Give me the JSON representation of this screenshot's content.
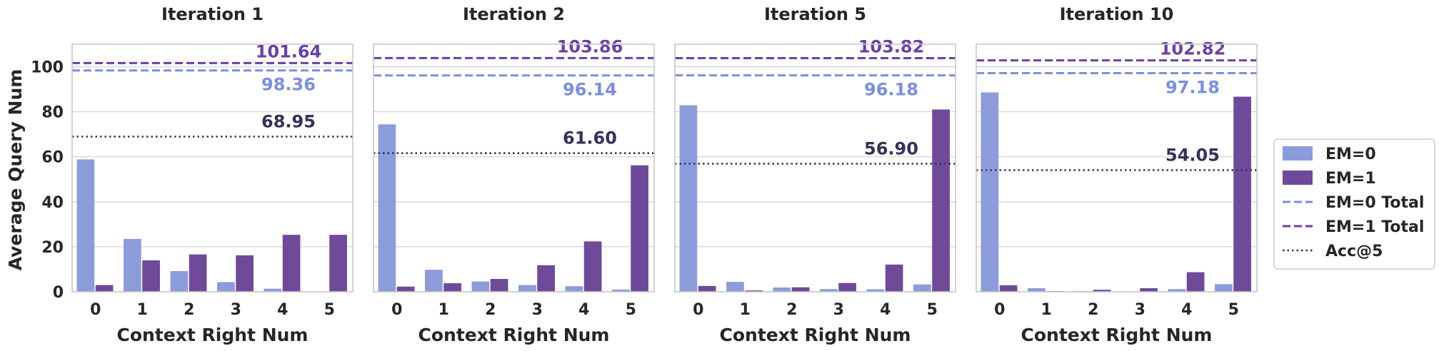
{
  "figure": {
    "shared_ylabel": "Average Query Num",
    "legend": [
      {
        "key": "em0",
        "label": "EM=0",
        "kind": "bar"
      },
      {
        "key": "em1",
        "label": "EM=1",
        "kind": "bar"
      },
      {
        "key": "em0_total",
        "label": "EM=0 Total",
        "kind": "dashed"
      },
      {
        "key": "em1_total",
        "label": "EM=1 Total",
        "kind": "dashed"
      },
      {
        "key": "acc5",
        "label": "Acc@5",
        "kind": "dotted"
      }
    ]
  },
  "colors": {
    "em0": "#8c9cdb",
    "em1": "#6e4a99",
    "em0_total": "#7b8fe0",
    "em1_total": "#6b3fa6",
    "acc5": "#34325a",
    "grid": "#d4d4d4",
    "axis": "#c8c8c8",
    "text": "#262626"
  },
  "chart_data": [
    {
      "type": "bar",
      "title": "Iteration 1",
      "xlabel": "Context Right Num",
      "ylabel": "Average Query Num",
      "categories": [
        "0",
        "1",
        "2",
        "3",
        "4",
        "5"
      ],
      "ylim": [
        0,
        110
      ],
      "yticks": [
        "0",
        "20",
        "40",
        "60",
        "80",
        "100"
      ],
      "series": [
        {
          "name": "EM=0",
          "values": [
            58.8,
            23.5,
            9.2,
            4.3,
            1.4,
            0.0
          ]
        },
        {
          "name": "EM=1",
          "values": [
            3.0,
            14.0,
            16.6,
            16.2,
            25.3,
            25.3
          ]
        }
      ],
      "reference_lines": {
        "em1_total": {
          "value": 101.64,
          "label": "101.64"
        },
        "em0_total": {
          "value": 98.36,
          "label": "98.36"
        },
        "acc5": {
          "value": 68.95,
          "label": "68.95"
        }
      }
    },
    {
      "type": "bar",
      "title": "Iteration 2",
      "xlabel": "Context Right Num",
      "ylabel": "",
      "categories": [
        "0",
        "1",
        "2",
        "3",
        "4",
        "5"
      ],
      "ylim": [
        0,
        110
      ],
      "yticks": [],
      "series": [
        {
          "name": "EM=0",
          "values": [
            74.4,
            9.8,
            4.6,
            3.0,
            2.5,
            1.0
          ]
        },
        {
          "name": "EM=1",
          "values": [
            2.3,
            3.8,
            5.7,
            11.8,
            22.4,
            56.2
          ]
        }
      ],
      "reference_lines": {
        "em1_total": {
          "value": 103.86,
          "label": "103.86"
        },
        "em0_total": {
          "value": 96.14,
          "label": "96.14"
        },
        "acc5": {
          "value": 61.6,
          "label": "61.60"
        }
      }
    },
    {
      "type": "bar",
      "title": "Iteration 5",
      "xlabel": "Context Right Num",
      "ylabel": "",
      "categories": [
        "0",
        "1",
        "2",
        "3",
        "4",
        "5"
      ],
      "ylim": [
        0,
        110
      ],
      "yticks": [],
      "series": [
        {
          "name": "EM=0",
          "values": [
            82.9,
            4.4,
            1.9,
            1.2,
            1.1,
            3.3
          ]
        },
        {
          "name": "EM=1",
          "values": [
            2.6,
            0.6,
            2.0,
            3.9,
            12.1,
            81.0
          ]
        }
      ],
      "reference_lines": {
        "em1_total": {
          "value": 103.82,
          "label": "103.82"
        },
        "em0_total": {
          "value": 96.18,
          "label": "96.18"
        },
        "acc5": {
          "value": 56.9,
          "label": "56.90"
        }
      }
    },
    {
      "type": "bar",
      "title": "Iteration 10",
      "xlabel": "Context Right Num",
      "ylabel": "",
      "categories": [
        "0",
        "1",
        "2",
        "3",
        "4",
        "5"
      ],
      "ylim": [
        0,
        110
      ],
      "yticks": [],
      "series": [
        {
          "name": "EM=0",
          "values": [
            88.6,
            1.6,
            0.3,
            0.2,
            1.2,
            3.4
          ]
        },
        {
          "name": "EM=1",
          "values": [
            2.9,
            0.3,
            0.9,
            1.6,
            8.7,
            86.7
          ]
        }
      ],
      "reference_lines": {
        "em1_total": {
          "value": 102.82,
          "label": "102.82"
        },
        "em0_total": {
          "value": 97.18,
          "label": "97.18"
        },
        "acc5": {
          "value": 54.05,
          "label": "54.05"
        }
      }
    }
  ]
}
